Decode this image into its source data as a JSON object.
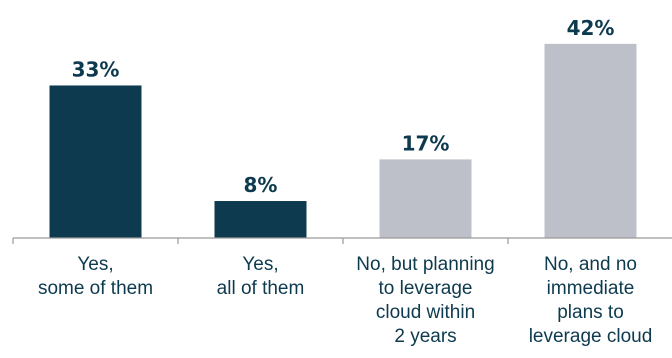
{
  "chart_data": {
    "type": "bar",
    "categories": [
      [
        "Yes,",
        "some of them"
      ],
      [
        "Yes,",
        "all of them"
      ],
      [
        "No, but planning",
        "to leverage",
        "cloud within",
        "2 years"
      ],
      [
        "No, and no",
        "immediate",
        "plans to",
        "leverage cloud"
      ]
    ],
    "values": [
      33,
      8,
      17,
      42
    ],
    "value_labels": [
      "33%",
      "8%",
      "17%",
      "42%"
    ],
    "unit": "%",
    "ylim": [
      0,
      45
    ],
    "title": "",
    "xlabel": "",
    "ylabel": "",
    "grid": false,
    "legend": "none",
    "colors": [
      "#0d3a4e",
      "#0d3a4e",
      "#bdc0c8",
      "#bdc0c8"
    ],
    "text_color": "#0d3a4e",
    "axis_color": "#9a9a9a"
  }
}
